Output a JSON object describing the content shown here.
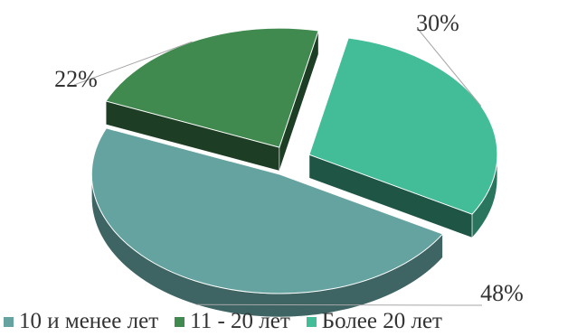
{
  "chart_data": {
    "type": "pie",
    "style": "3d-exploded",
    "title": "",
    "slices": [
      {
        "name": "10 и менее лет",
        "value": 48,
        "label": "48%",
        "color": "#64a3a0"
      },
      {
        "name": "11 - 20 лет",
        "value": 22,
        "label": "22%",
        "color": "#418a4f"
      },
      {
        "name": "Более 20 лет",
        "value": 30,
        "label": "30%",
        "color": "#42bd98"
      }
    ],
    "legend": {
      "position": "bottom"
    }
  }
}
